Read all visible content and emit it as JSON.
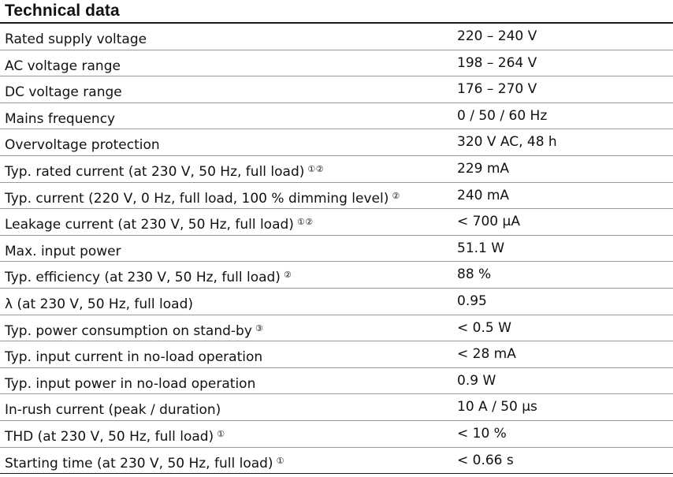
{
  "title": "Technical data",
  "rows": [
    {
      "label": "Rated supply voltage",
      "note": "",
      "value": "220 – 240 V"
    },
    {
      "label": "AC voltage range",
      "note": "",
      "value": "198 – 264 V"
    },
    {
      "label": "DC voltage range",
      "note": "",
      "value": "176 – 270 V"
    },
    {
      "label": "Mains frequency",
      "note": "",
      "value": "0 / 50 / 60 Hz"
    },
    {
      "label": "Overvoltage protection",
      "note": "",
      "value": "320 V AC, 48 h"
    },
    {
      "label": "Typ. rated current (at 230 V, 50 Hz, full load)",
      "note": "①②",
      "value": "229 mA"
    },
    {
      "label": "Typ. current (220 V, 0 Hz, full load, 100 % dimming level)",
      "note": "②",
      "value": "240 mA"
    },
    {
      "label": "Leakage current (at 230 V, 50 Hz, full load)",
      "note": "①②",
      "value": "< 700 µA"
    },
    {
      "label": "Max. input power",
      "note": "",
      "value": "51.1 W"
    },
    {
      "label": "Typ. efficiency (at 230 V, 50 Hz, full load)",
      "note": "②",
      "value": "88 %"
    },
    {
      "label": "λ (at 230 V, 50 Hz, full load)",
      "note": "",
      "value": "0.95"
    },
    {
      "label": "Typ. power consumption on stand-by",
      "note": "③",
      "value": "< 0.5 W"
    },
    {
      "label": "Typ. input current in no-load operation",
      "note": "",
      "value": "< 28 mA"
    },
    {
      "label": "Typ. input power in no-load operation",
      "note": "",
      "value": "0.9 W"
    },
    {
      "label": "In-rush current (peak / duration)",
      "note": "",
      "value": "10 A / 50 µs"
    },
    {
      "label": "THD (at 230 V, 50 Hz, full load)",
      "note": "①",
      "value": "< 10 %"
    },
    {
      "label": "Starting time (at 230 V, 50 Hz, full load)",
      "note": "①",
      "value": "< 0.66 s"
    }
  ]
}
